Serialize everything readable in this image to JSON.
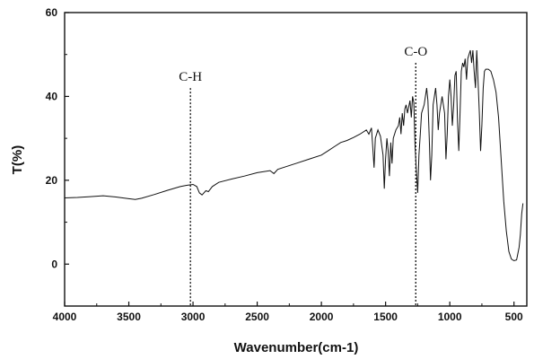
{
  "chart_data": {
    "type": "line",
    "title": "",
    "xlabel": "Wavenumber(cm-1)",
    "ylabel": "T(%)",
    "xlim": [
      4000,
      400
    ],
    "ylim": [
      -10,
      60
    ],
    "x_reversed": true,
    "grid": false,
    "xticks": [
      4000,
      3500,
      3000,
      2500,
      2000,
      1500,
      1000,
      500
    ],
    "xtick_labels": [
      "4000",
      "3500",
      "3000",
      "2500",
      "2000",
      "1500",
      "1000",
      "500"
    ],
    "yticks": [
      0,
      20,
      40,
      60
    ],
    "ytick_labels": [
      "0",
      "20",
      "40",
      "60"
    ],
    "series": [
      {
        "color": "#111111",
        "points": [
          [
            4000,
            15.8
          ],
          [
            3900,
            15.9
          ],
          [
            3800,
            16.1
          ],
          [
            3700,
            16.3
          ],
          [
            3600,
            16.0
          ],
          [
            3500,
            15.6
          ],
          [
            3450,
            15.4
          ],
          [
            3400,
            15.7
          ],
          [
            3300,
            16.6
          ],
          [
            3200,
            17.6
          ],
          [
            3100,
            18.5
          ],
          [
            3050,
            18.8
          ],
          [
            3000,
            19.0
          ],
          [
            2970,
            18.5
          ],
          [
            2950,
            17.0
          ],
          [
            2930,
            16.5
          ],
          [
            2900,
            17.5
          ],
          [
            2880,
            17.3
          ],
          [
            2850,
            18.5
          ],
          [
            2800,
            19.5
          ],
          [
            2700,
            20.3
          ],
          [
            2600,
            21.0
          ],
          [
            2500,
            21.8
          ],
          [
            2400,
            22.3
          ],
          [
            2370,
            21.6
          ],
          [
            2340,
            22.6
          ],
          [
            2300,
            23.0
          ],
          [
            2200,
            24.0
          ],
          [
            2100,
            25.0
          ],
          [
            2000,
            26.0
          ],
          [
            1950,
            27.0
          ],
          [
            1900,
            28.0
          ],
          [
            1850,
            29.0
          ],
          [
            1800,
            29.5
          ],
          [
            1750,
            30.2
          ],
          [
            1700,
            31.0
          ],
          [
            1650,
            32.0
          ],
          [
            1630,
            31.0
          ],
          [
            1610,
            32.5
          ],
          [
            1600,
            28.0
          ],
          [
            1590,
            23.0
          ],
          [
            1580,
            30.0
          ],
          [
            1560,
            32.0
          ],
          [
            1540,
            30.5
          ],
          [
            1520,
            26.0
          ],
          [
            1510,
            18.0
          ],
          [
            1500,
            25.0
          ],
          [
            1490,
            30.0
          ],
          [
            1480,
            27.0
          ],
          [
            1470,
            21.0
          ],
          [
            1460,
            29.0
          ],
          [
            1450,
            24.0
          ],
          [
            1440,
            30.0
          ],
          [
            1420,
            32.0
          ],
          [
            1400,
            33.0
          ],
          [
            1390,
            35.0
          ],
          [
            1380,
            31.0
          ],
          [
            1370,
            36.0
          ],
          [
            1360,
            33.0
          ],
          [
            1350,
            37.0
          ],
          [
            1340,
            38.0
          ],
          [
            1330,
            36.0
          ],
          [
            1310,
            39.0
          ],
          [
            1300,
            35.0
          ],
          [
            1290,
            40.0
          ],
          [
            1280,
            38.5
          ],
          [
            1270,
            28.0
          ],
          [
            1260,
            22.0
          ],
          [
            1250,
            17.0
          ],
          [
            1240,
            26.0
          ],
          [
            1230,
            31.0
          ],
          [
            1220,
            36.0
          ],
          [
            1200,
            38.0
          ],
          [
            1180,
            42.0
          ],
          [
            1170,
            39.0
          ],
          [
            1160,
            30.0
          ],
          [
            1150,
            20.0
          ],
          [
            1140,
            26.0
          ],
          [
            1130,
            38.0
          ],
          [
            1120,
            40.0
          ],
          [
            1110,
            42.0
          ],
          [
            1100,
            38.0
          ],
          [
            1090,
            32.0
          ],
          [
            1080,
            36.0
          ],
          [
            1060,
            40.0
          ],
          [
            1040,
            36.0
          ],
          [
            1030,
            25.0
          ],
          [
            1020,
            31.0
          ],
          [
            1010,
            40.0
          ],
          [
            1000,
            44.0
          ],
          [
            990,
            40.0
          ],
          [
            980,
            33.0
          ],
          [
            970,
            38.0
          ],
          [
            960,
            45.0
          ],
          [
            950,
            46.0
          ],
          [
            940,
            34.0
          ],
          [
            930,
            27.0
          ],
          [
            920,
            36.0
          ],
          [
            910,
            46.0
          ],
          [
            900,
            48.0
          ],
          [
            890,
            47.0
          ],
          [
            880,
            49.0
          ],
          [
            870,
            44.0
          ],
          [
            860,
            49.0
          ],
          [
            850,
            50.0
          ],
          [
            840,
            51.0
          ],
          [
            830,
            48.0
          ],
          [
            820,
            51.0
          ],
          [
            810,
            46.0
          ],
          [
            800,
            42.0
          ],
          [
            790,
            51.0
          ],
          [
            780,
            44.0
          ],
          [
            770,
            36.0
          ],
          [
            760,
            27.0
          ],
          [
            750,
            33.0
          ],
          [
            740,
            42.0
          ],
          [
            730,
            46.0
          ],
          [
            720,
            46.5
          ],
          [
            700,
            46.5
          ],
          [
            680,
            46.0
          ],
          [
            660,
            44.0
          ],
          [
            640,
            41.0
          ],
          [
            620,
            35.0
          ],
          [
            600,
            25.0
          ],
          [
            580,
            15.0
          ],
          [
            560,
            8.0
          ],
          [
            540,
            3.0
          ],
          [
            520,
            1.2
          ],
          [
            500,
            0.8
          ],
          [
            480,
            1.0
          ],
          [
            470,
            2.5
          ],
          [
            460,
            4.0
          ],
          [
            450,
            7.0
          ],
          [
            440,
            12.0
          ],
          [
            430,
            14.5
          ]
        ]
      }
    ],
    "annotations": [
      {
        "text": "C-H",
        "x": 3020,
        "line_to_y": 42
      },
      {
        "text": "C-O",
        "x": 1265,
        "line_to_y": 48
      }
    ]
  }
}
